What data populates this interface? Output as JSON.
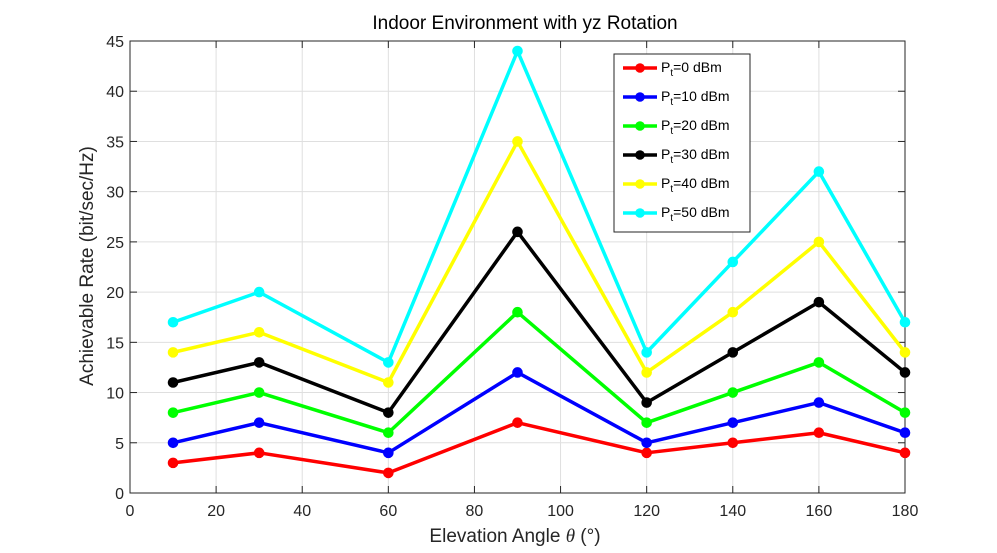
{
  "chart_data": {
    "type": "line",
    "title": "Indoor Environment with yz Rotation",
    "xlabel_prefix": "Elevation Angle ",
    "xlabel_symbol": "θ",
    "xlabel_suffix": " (°)",
    "ylabel": "Achievable Rate (bit/sec/Hz)",
    "xlim": [
      0,
      180
    ],
    "ylim": [
      0,
      45
    ],
    "xticks": [
      0,
      20,
      40,
      60,
      80,
      100,
      120,
      140,
      160,
      180
    ],
    "yticks": [
      0,
      5,
      10,
      15,
      20,
      25,
      30,
      35,
      40,
      45
    ],
    "grid": true,
    "legend_position": "top-right",
    "x": [
      10,
      30,
      60,
      90,
      120,
      140,
      160,
      180
    ],
    "series": [
      {
        "name_main": "P",
        "name_sub": "t",
        "name_rest": "=0 dBm",
        "color": "#ff0000",
        "values": [
          3,
          4,
          2,
          7,
          4,
          5,
          6,
          4
        ]
      },
      {
        "name_main": "P",
        "name_sub": "t",
        "name_rest": "=10 dBm",
        "color": "#0000ff",
        "values": [
          5,
          7,
          4,
          12,
          5,
          7,
          9,
          6
        ]
      },
      {
        "name_main": "P",
        "name_sub": "t",
        "name_rest": "=20 dBm",
        "color": "#00ff00",
        "values": [
          8,
          10,
          6,
          18,
          7,
          10,
          13,
          8
        ]
      },
      {
        "name_main": "P",
        "name_sub": "t",
        "name_rest": "=30 dBm",
        "color": "#000000",
        "values": [
          11,
          13,
          8,
          26,
          9,
          14,
          19,
          12
        ]
      },
      {
        "name_main": "P",
        "name_sub": "t",
        "name_rest": "=40 dBm",
        "color": "#ffff00",
        "values": [
          14,
          16,
          11,
          35,
          12,
          18,
          25,
          14
        ]
      },
      {
        "name_main": "P",
        "name_sub": "t",
        "name_rest": "=50 dBm",
        "color": "#00ffff",
        "values": [
          17,
          20,
          13,
          44,
          14,
          23,
          32,
          17
        ]
      }
    ]
  }
}
